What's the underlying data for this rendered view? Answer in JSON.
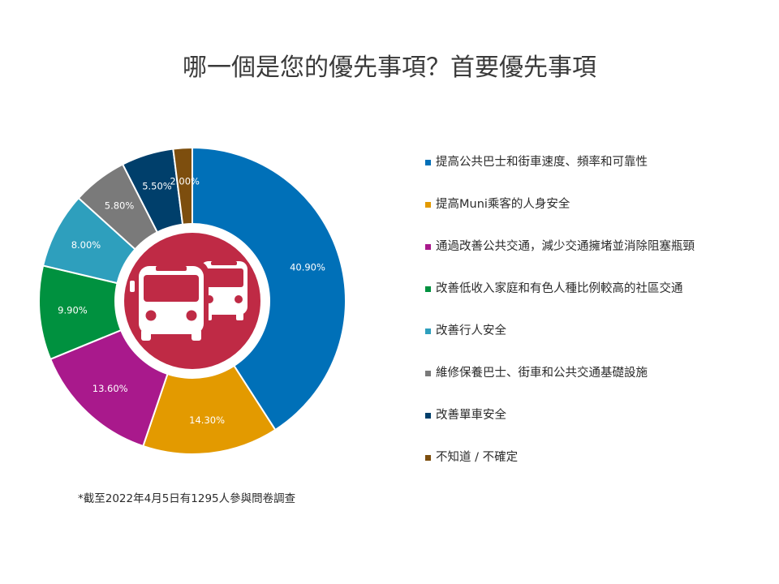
{
  "title": "哪一個是您的優先事項？首要優先事項",
  "footnote": "*截至2022年4月5日有1295人參與問卷調查",
  "colors": {
    "center_circle": "#bf2a45",
    "bus_icon": "#ffffff"
  },
  "center_icon": "bus-icon",
  "chart_data": {
    "type": "pie",
    "title": "哪一個是您的優先事項？首要優先事項",
    "legend_position": "right",
    "unit": "%",
    "categories": [
      "提高公共巴士和街車速度、頻率和可靠性",
      "提高Muni乘客的人身安全",
      "通過改善公共交通，減少交通擁堵並消除阻塞瓶頸",
      "改善低收入家庭和有色人種比例較高的社區交通",
      "改善行人安全",
      "維修保養巴士、街車和公共交通基礎設施",
      "改善單車安全",
      "不知道 / 不確定"
    ],
    "values": [
      40.9,
      14.3,
      13.6,
      9.9,
      8.0,
      5.8,
      5.5,
      2.0
    ],
    "labels": [
      "40.90%",
      "14.30%",
      "13.60%",
      "9.90%",
      "8.00%",
      "5.80%",
      "5.50%",
      "2.00%"
    ],
    "colors": [
      "#0070b8",
      "#e39a00",
      "#a9198c",
      "#00913f",
      "#2e9fbd",
      "#7a7a7a",
      "#003f6b",
      "#7d4e0e"
    ]
  }
}
